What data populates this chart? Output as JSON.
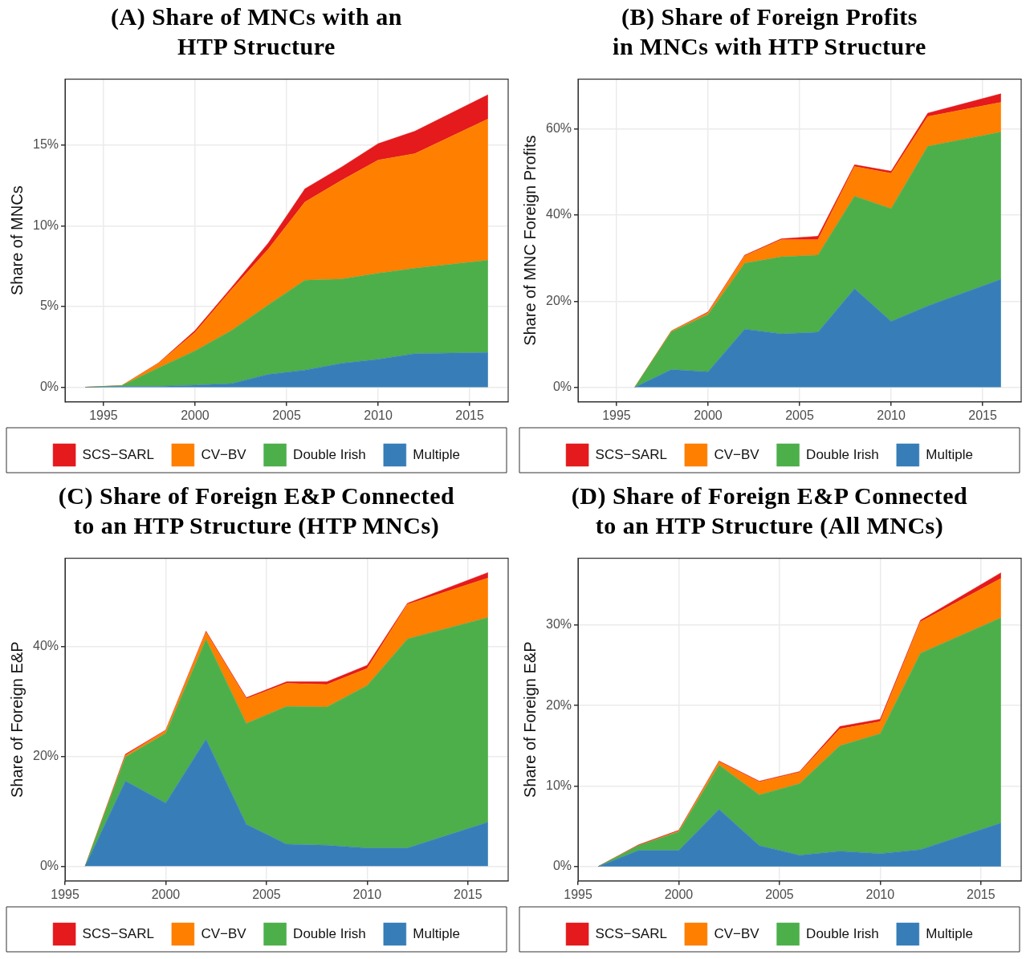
{
  "chart_data": [
    {
      "type": "area",
      "stacked": true,
      "title": "(A) Share of MNCs with an\nHTP Structure",
      "ylabel": "Share of MNCs",
      "x": [
        1994,
        1996,
        1998,
        2000,
        2002,
        2004,
        2006,
        2008,
        2010,
        2012,
        2016
      ],
      "xlim": [
        1992.9,
        2017.1
      ],
      "xticks": [
        1995,
        2000,
        2005,
        2010,
        2015
      ],
      "ylim": [
        -0.91,
        19.1
      ],
      "yticks": [
        {
          "value": 0,
          "label": "0%"
        },
        {
          "value": 5,
          "label": "5%"
        },
        {
          "value": 10,
          "label": "10%"
        },
        {
          "value": 15,
          "label": "15%"
        }
      ],
      "grid": true,
      "legend": "bottom",
      "series": [
        {
          "name": "Multiple",
          "color": "#377eb8",
          "values": [
            0,
            0.05,
            0.05,
            0.13,
            0.23,
            0.8,
            1.06,
            1.48,
            1.73,
            2.08,
            2.15
          ]
        },
        {
          "name": "Double Irish",
          "color": "#4daf4a",
          "values": [
            0,
            0.05,
            1.15,
            2.12,
            3.29,
            4.3,
            5.57,
            5.22,
            5.33,
            5.29,
            5.72
          ]
        },
        {
          "name": "CV−BV",
          "color": "#ff7f00",
          "values": [
            0,
            0,
            0.28,
            1.15,
            2.54,
            3.46,
            4.85,
            6.13,
            7.02,
            7.11,
            8.76
          ]
        },
        {
          "name": "SCS−SARL",
          "color": "#e41a1c",
          "values": [
            0,
            0,
            0.02,
            0.12,
            0.14,
            0.38,
            0.82,
            0.82,
            1.02,
            1.39,
            1.5
          ]
        }
      ]
    },
    {
      "type": "area",
      "stacked": true,
      "title": "(B) Share of Foreign Profits\nin MNCs with HTP Structure",
      "ylabel": "Share of MNC Foreign Profits",
      "x": [
        1996,
        1998,
        2000,
        2002,
        2004,
        2006,
        2008,
        2010,
        2012,
        2016
      ],
      "xlim": [
        1992.9,
        2017.1
      ],
      "xticks": [
        1995,
        2000,
        2005,
        2010,
        2015
      ],
      "ylim": [
        -3.4,
        71.6
      ],
      "yticks": [
        {
          "value": 0,
          "label": "0%"
        },
        {
          "value": 20,
          "label": "20%"
        },
        {
          "value": 40,
          "label": "40%"
        },
        {
          "value": 60,
          "label": "60%"
        }
      ],
      "grid": true,
      "legend": "bottom",
      "series": [
        {
          "name": "Multiple",
          "color": "#377eb8",
          "values": [
            0,
            4.1,
            3.6,
            13.5,
            12.4,
            12.8,
            22.9,
            15.3,
            18.9,
            25.1
          ]
        },
        {
          "name": "Double Irish",
          "color": "#4daf4a",
          "values": [
            0,
            8.8,
            13.3,
            15.3,
            17.9,
            17.9,
            21.5,
            26.2,
            37.1,
            34.2
          ]
        },
        {
          "name": "CV−BV",
          "color": "#ff7f00",
          "values": [
            0,
            0.2,
            0.4,
            1.7,
            4.0,
            3.6,
            6.9,
            8.2,
            6.9,
            6.9
          ]
        },
        {
          "name": "SCS−SARL",
          "color": "#e41a1c",
          "values": [
            0,
            0,
            0.2,
            0.2,
            0.2,
            0.8,
            0.4,
            0.5,
            0.8,
            2.0
          ]
        }
      ]
    },
    {
      "type": "area",
      "stacked": true,
      "title": "(C) Share of Foreign E&P Connected\nto an HTP Structure (HTP MNCs)",
      "ylabel": "Share of Foreign E&P",
      "x": [
        1996,
        1998,
        2000,
        2002,
        2004,
        2006,
        2008,
        2010,
        2012,
        2016
      ],
      "xlim": [
        1995,
        2017
      ],
      "xticks": [
        1995,
        2000,
        2005,
        2010,
        2015
      ],
      "ylim": [
        -2.7,
        56.1
      ],
      "yticks": [
        {
          "value": 0,
          "label": "0%"
        },
        {
          "value": 20,
          "label": "20%"
        },
        {
          "value": 40,
          "label": "40%"
        }
      ],
      "grid": true,
      "legend": "bottom",
      "series": [
        {
          "name": "Multiple",
          "color": "#377eb8",
          "values": [
            0,
            15.5,
            11.5,
            23.1,
            7.6,
            4.0,
            3.8,
            3.3,
            3.3,
            8.0
          ]
        },
        {
          "name": "Double Irish",
          "color": "#4daf4a",
          "values": [
            0,
            4.4,
            12.7,
            18.2,
            18.4,
            25.1,
            25.2,
            29.6,
            38.1,
            37.3
          ]
        },
        {
          "name": "CV−BV",
          "color": "#ff7f00",
          "values": [
            0,
            0.3,
            0.5,
            1.3,
            4.5,
            4.2,
            4.1,
            3.1,
            6.3,
            7.2
          ]
        },
        {
          "name": "SCS−SARL",
          "color": "#e41a1c",
          "values": [
            0,
            0.2,
            0.1,
            0.2,
            0.2,
            0.3,
            0.5,
            0.6,
            0.2,
            1.0
          ]
        }
      ]
    },
    {
      "type": "area",
      "stacked": true,
      "title": "(D) Share of Foreign E&P Connected\nto an HTP Structure (All MNCs)",
      "ylabel": "Share of Foreign E&P",
      "x": [
        1996,
        1998,
        2000,
        2002,
        2004,
        2006,
        2008,
        2010,
        2012,
        2016
      ],
      "xlim": [
        1995,
        2017
      ],
      "xticks": [
        1995,
        2000,
        2005,
        2010,
        2015
      ],
      "ylim": [
        -1.8,
        38.3
      ],
      "yticks": [
        {
          "value": 0,
          "label": "0%"
        },
        {
          "value": 10,
          "label": "10%"
        },
        {
          "value": 20,
          "label": "20%"
        },
        {
          "value": 30,
          "label": "30%"
        }
      ],
      "grid": true,
      "legend": "bottom",
      "series": [
        {
          "name": "Multiple",
          "color": "#377eb8",
          "values": [
            0,
            2.0,
            2.0,
            7.1,
            2.6,
            1.4,
            1.9,
            1.6,
            2.1,
            5.4
          ]
        },
        {
          "name": "Double Irish",
          "color": "#4daf4a",
          "values": [
            0,
            0.6,
            2.3,
            5.5,
            6.3,
            8.9,
            13.1,
            14.9,
            24.4,
            25.5
          ]
        },
        {
          "name": "CV−BV",
          "color": "#ff7f00",
          "values": [
            0,
            0,
            0.1,
            0.4,
            1.6,
            1.4,
            2.1,
            1.5,
            3.9,
            4.9
          ]
        },
        {
          "name": "SCS−SARL",
          "color": "#e41a1c",
          "values": [
            0,
            0.1,
            0.1,
            0.1,
            0.1,
            0.1,
            0.3,
            0.3,
            0.2,
            0.7
          ]
        }
      ]
    }
  ]
}
